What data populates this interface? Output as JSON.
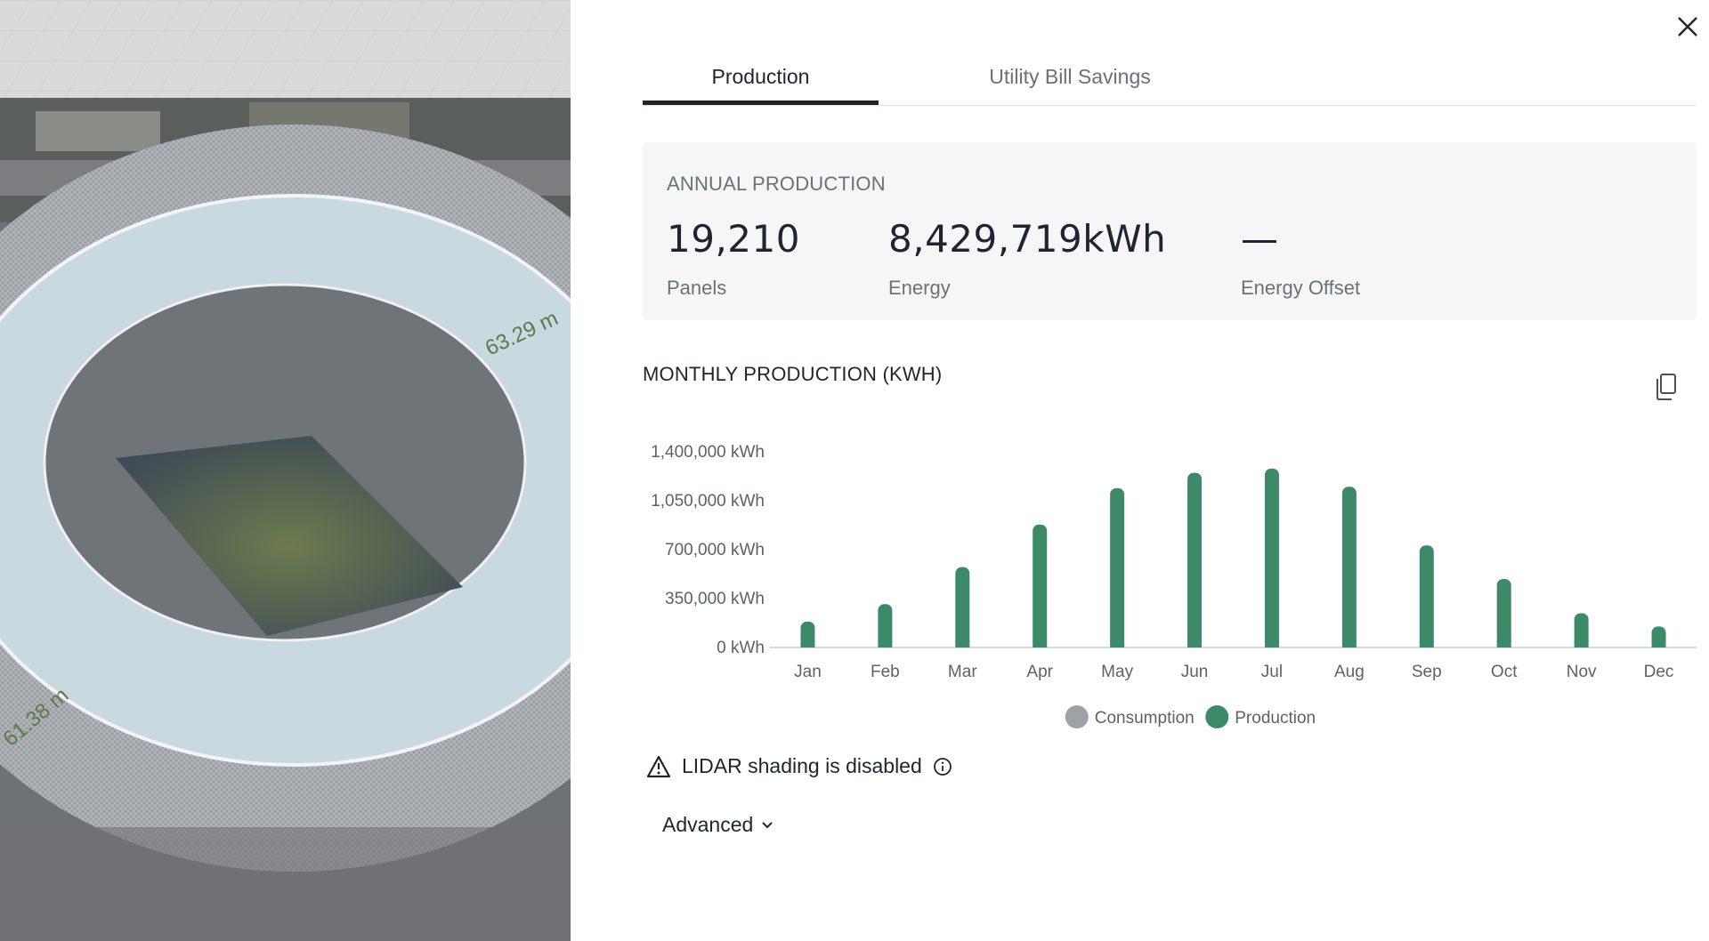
{
  "map": {
    "measure_labels": [
      "63.29 m",
      "61.38 m"
    ]
  },
  "tabs": [
    {
      "label": "Production",
      "active": true
    },
    {
      "label": "Utility Bill Savings",
      "active": false
    }
  ],
  "annual": {
    "title": "ANNUAL PRODUCTION",
    "panels_value": "19,210",
    "panels_label": "Panels",
    "energy_value": "8,429,719kWh",
    "energy_label": "Energy",
    "offset_value": "—",
    "offset_label": "Energy Offset"
  },
  "monthly": {
    "title": "MONTHLY PRODUCTION (KWH)"
  },
  "chart_data": {
    "type": "bar",
    "categories": [
      "Jan",
      "Feb",
      "Mar",
      "Apr",
      "May",
      "Jun",
      "Jul",
      "Aug",
      "Sep",
      "Oct",
      "Nov",
      "Dec"
    ],
    "series": [
      {
        "name": "Consumption",
        "values": [
          0,
          0,
          0,
          0,
          0,
          0,
          0,
          0,
          0,
          0,
          0,
          0
        ],
        "color": "#9ea1a6"
      },
      {
        "name": "Production",
        "values": [
          185000,
          310000,
          575000,
          880000,
          1140000,
          1250000,
          1280000,
          1150000,
          730000,
          490000,
          245000,
          150000
        ],
        "color": "#3d8a69"
      }
    ],
    "yticks": [
      "0 kWh",
      "350,000 kWh",
      "700,000 kWh",
      "1,050,000 kWh",
      "1,400,000 kWh"
    ],
    "ylim": [
      0,
      1400000
    ],
    "legend_position": "bottom-center",
    "title": "",
    "xlabel": "",
    "ylabel": ""
  },
  "lidar": {
    "text": "LIDAR shading is disabled"
  },
  "advanced": {
    "label": "Advanced"
  },
  "colors": {
    "accent": "#3d8a69",
    "consumption": "#9ea1a6",
    "text": "#1f2430",
    "muted": "#6b7079"
  }
}
